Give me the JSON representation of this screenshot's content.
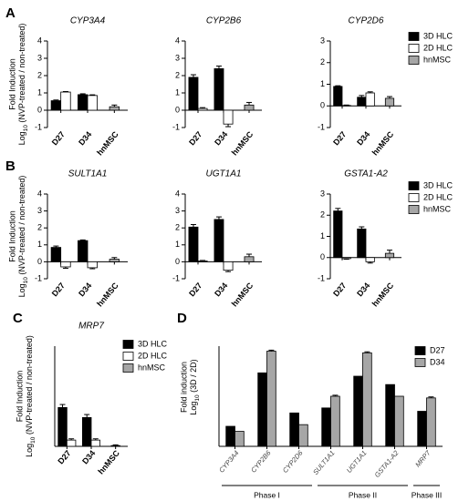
{
  "chart_data": [
    {
      "type": "bar",
      "panel": "A",
      "title": "CYP3A4",
      "categories": [
        "D27",
        "D34",
        "hnMSC"
      ],
      "ylabel": {
        "line1": "Fold Induction",
        "line2": [
          "Log",
          "10",
          " (NVP-treated / non-treated)"
        ]
      },
      "series": [
        {
          "name": "3D HLC",
          "color": "#000000",
          "values": [
            0.55,
            0.9,
            null
          ],
          "errors": [
            0.04,
            0.05,
            null
          ]
        },
        {
          "name": "2D HLC",
          "color": "#ffffff",
          "values": [
            1.05,
            0.85,
            null
          ],
          "errors": [
            0.03,
            0.04,
            null
          ]
        },
        {
          "name": "hnMSC",
          "color": "#a6a6a6",
          "values": [
            null,
            null,
            0.2
          ],
          "errors": [
            null,
            null,
            0.1
          ]
        }
      ],
      "ylim": [
        -1,
        4
      ],
      "yticks": [
        -1,
        0,
        1,
        2,
        3,
        4
      ]
    },
    {
      "type": "bar",
      "title": "CYP2B6",
      "categories": [
        "D27",
        "D34",
        "hnMSC"
      ],
      "series": [
        {
          "name": "3D HLC",
          "color": "#000000",
          "values": [
            1.9,
            2.4,
            null
          ],
          "errors": [
            0.15,
            0.15,
            null
          ]
        },
        {
          "name": "2D HLC",
          "color": "#ffffff",
          "values": [
            0.1,
            -0.8,
            null
          ],
          "errors": [
            0.05,
            0.15,
            null
          ]
        },
        {
          "name": "hnMSC",
          "color": "#a6a6a6",
          "values": [
            null,
            null,
            0.3
          ],
          "errors": [
            null,
            null,
            0.15
          ]
        }
      ],
      "ylim": [
        -1,
        4
      ],
      "yticks": [
        -1,
        0,
        1,
        2,
        3,
        4
      ]
    },
    {
      "type": "bar",
      "title": "CYP2D6",
      "categories": [
        "D27",
        "D34",
        "hnMSC"
      ],
      "legend": "right",
      "series": [
        {
          "name": "3D HLC",
          "color": "#000000",
          "values": [
            0.9,
            0.4,
            null
          ],
          "errors": [
            0.03,
            0.08,
            null
          ]
        },
        {
          "name": "2D HLC",
          "color": "#ffffff",
          "values": [
            0.02,
            0.6,
            null
          ],
          "errors": [
            0.02,
            0.05,
            null
          ]
        },
        {
          "name": "hnMSC",
          "color": "#a6a6a6",
          "values": [
            null,
            null,
            0.35
          ],
          "errors": [
            null,
            null,
            0.08
          ]
        }
      ],
      "ylim": [
        -1,
        3
      ],
      "yticks": [
        -1,
        0,
        1,
        2,
        3
      ]
    },
    {
      "type": "bar",
      "panel": "B",
      "title": "SULT1A1",
      "categories": [
        "D27",
        "D34",
        "hnMSC"
      ],
      "ylabel": {
        "line1": "Fold Induction",
        "line2": [
          "Log",
          "10",
          " (NVP-treated / non-treated)"
        ]
      },
      "series": [
        {
          "name": "3D HLC",
          "color": "#000000",
          "values": [
            0.85,
            1.25,
            null
          ],
          "errors": [
            0.08,
            0.04,
            null
          ]
        },
        {
          "name": "2D HLC",
          "color": "#ffffff",
          "values": [
            -0.3,
            -0.35,
            null
          ],
          "errors": [
            0.08,
            0.06,
            null
          ]
        },
        {
          "name": "hnMSC",
          "color": "#a6a6a6",
          "values": [
            null,
            null,
            0.15
          ],
          "errors": [
            null,
            null,
            0.1
          ]
        }
      ],
      "ylim": [
        -1,
        4
      ],
      "yticks": [
        -1,
        0,
        1,
        2,
        3,
        4
      ]
    },
    {
      "type": "bar",
      "title": "UGT1A1",
      "categories": [
        "D27",
        "D34",
        "hnMSC"
      ],
      "series": [
        {
          "name": "3D HLC",
          "color": "#000000",
          "values": [
            2.05,
            2.5,
            null
          ],
          "errors": [
            0.15,
            0.15,
            null
          ]
        },
        {
          "name": "2D HLC",
          "color": "#ffffff",
          "values": [
            0.05,
            -0.5,
            null
          ],
          "errors": [
            0.03,
            0.08,
            null
          ]
        },
        {
          "name": "hnMSC",
          "color": "#a6a6a6",
          "values": [
            null,
            null,
            0.3
          ],
          "errors": [
            null,
            null,
            0.15
          ]
        }
      ],
      "ylim": [
        -1,
        4
      ],
      "yticks": [
        -1,
        0,
        1,
        2,
        3,
        4
      ]
    },
    {
      "type": "bar",
      "title": "GSTA1-A2",
      "categories": [
        "D27",
        "D34",
        "hnMSC"
      ],
      "legend": "right",
      "series": [
        {
          "name": "3D HLC",
          "color": "#000000",
          "values": [
            2.2,
            1.35,
            null
          ],
          "errors": [
            0.12,
            0.1,
            null
          ]
        },
        {
          "name": "2D HLC",
          "color": "#ffffff",
          "values": [
            -0.05,
            -0.2,
            null
          ],
          "errors": [
            0.03,
            0.06,
            null
          ]
        },
        {
          "name": "hnMSC",
          "color": "#a6a6a6",
          "values": [
            null,
            null,
            0.2
          ],
          "errors": [
            null,
            null,
            0.15
          ]
        }
      ],
      "ylim": [
        -1,
        3
      ],
      "yticks": [
        -1,
        0,
        1,
        2,
        3
      ]
    },
    {
      "type": "bar",
      "panel": "C",
      "title": "MRP7",
      "categories": [
        "D27",
        "D34",
        "hnMSC"
      ],
      "legend": "right",
      "ylabel": {
        "line1": "Fold Induction",
        "line2": [
          "Log",
          "10",
          " (NVP-treated / non-treated)"
        ]
      },
      "series": [
        {
          "name": "3D HLC",
          "color": "#000000",
          "values": [
            1.55,
            1.15,
            null
          ],
          "errors": [
            0.12,
            0.12,
            null
          ]
        },
        {
          "name": "2D HLC",
          "color": "#ffffff",
          "values": [
            0.25,
            0.25,
            null
          ],
          "errors": [
            0.05,
            0.05,
            null
          ]
        },
        {
          "name": "hnMSC",
          "color": "#a6a6a6",
          "values": [
            null,
            null,
            0.03
          ],
          "errors": [
            null,
            null,
            0.03
          ]
        }
      ],
      "ylim": [
        0,
        4
      ]
    },
    {
      "type": "bar",
      "panel": "D",
      "categories": [
        "CYP3A4",
        "CYP2B6",
        "CYP2D6",
        "SULT1A1",
        "UGT1A1",
        "GSTA1-A2",
        "MRP7"
      ],
      "legend": "right",
      "ylabel": {
        "line1": "Fold induction",
        "line2": [
          "Log",
          "10",
          " (3D / 2D)"
        ]
      },
      "series": [
        {
          "name": "D27",
          "color": "#000000",
          "values": [
            0.6,
            2.2,
            1.0,
            1.15,
            2.1,
            1.85,
            1.05
          ]
        },
        {
          "name": "D34",
          "color": "#a6a6a6",
          "values": [
            0.45,
            2.85,
            0.65,
            1.5,
            2.8,
            1.5,
            1.45
          ],
          "errors": [
            null,
            0.03,
            null,
            0.03,
            0.03,
            null,
            0.03
          ]
        }
      ],
      "groups": [
        {
          "label": "Phase I",
          "span": [
            0,
            2
          ]
        },
        {
          "label": "Phase II",
          "span": [
            3,
            5
          ]
        },
        {
          "label": "Phase III",
          "span": [
            6,
            6
          ]
        }
      ],
      "ylim": [
        0,
        3
      ]
    }
  ]
}
